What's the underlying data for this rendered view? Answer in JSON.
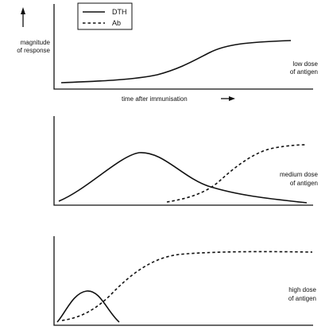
{
  "legend": {
    "items": [
      {
        "label": "DTH",
        "style": "solid"
      },
      {
        "label": "Ab",
        "style": "dashed"
      }
    ]
  },
  "axes": {
    "y_label_line1": "magnitude",
    "y_label_line2": "of response",
    "x_label": "time after immunisation"
  },
  "panels": [
    {
      "label_line1": "low dose",
      "label_line2": "of antigen"
    },
    {
      "label_line1": "medium dose",
      "label_line2": "of antigen"
    },
    {
      "label_line1": "high dose",
      "label_line2": "of antigen"
    }
  ],
  "colors": {
    "ink": "#111111",
    "background": "#ffffff"
  }
}
